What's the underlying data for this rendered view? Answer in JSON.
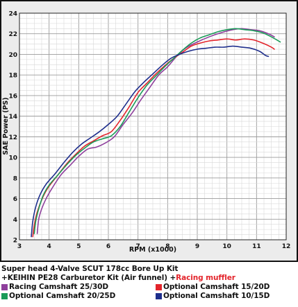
{
  "chart_data": {
    "type": "line",
    "xlabel": "RPM (x1000)",
    "ylabel": "SAE Power (PS)",
    "xlim": [
      3,
      12
    ],
    "ylim": [
      2,
      24
    ],
    "x_ticks": [
      3,
      4,
      5,
      6,
      7,
      8,
      9,
      10,
      11,
      12
    ],
    "y_ticks": [
      2,
      4,
      6,
      8,
      10,
      12,
      14,
      16,
      18,
      20,
      22,
      24
    ],
    "grid": true,
    "series": [
      {
        "name": "Racing Camshaft 25/30D",
        "color": "#8e3f9c",
        "x": [
          3.6,
          3.65,
          3.75,
          3.9,
          4.1,
          4.4,
          4.7,
          5.0,
          5.3,
          5.6,
          5.9,
          6.2,
          6.5,
          6.8,
          7.1,
          7.4,
          7.7,
          8.0,
          8.3,
          8.6,
          9.0,
          9.4,
          9.8,
          10.2,
          10.5,
          10.8,
          11.1,
          11.4,
          11.6
        ],
        "y": [
          2.6,
          4.0,
          5.0,
          6.0,
          7.0,
          8.3,
          9.2,
          10.1,
          10.8,
          11.0,
          11.4,
          12.0,
          13.2,
          14.3,
          15.6,
          16.8,
          18.0,
          18.8,
          19.8,
          20.6,
          21.2,
          21.7,
          22.1,
          22.4,
          22.5,
          22.4,
          22.3,
          22.0,
          21.7
        ]
      },
      {
        "name": "Optional Camshaft 15/20D",
        "color": "#e3242b",
        "x": [
          3.45,
          3.5,
          3.6,
          3.8,
          4.0,
          4.3,
          4.6,
          4.9,
          5.2,
          5.5,
          5.8,
          6.1,
          6.4,
          6.7,
          7.0,
          7.3,
          7.6,
          7.9,
          8.2,
          8.5,
          8.8,
          9.1,
          9.4,
          9.7,
          10.0,
          10.3,
          10.6,
          10.9,
          11.2,
          11.5,
          11.6
        ],
        "y": [
          2.3,
          3.4,
          4.7,
          6.2,
          7.2,
          8.3,
          9.4,
          10.3,
          11.1,
          11.6,
          12.1,
          12.5,
          13.6,
          14.9,
          16.3,
          17.2,
          18.1,
          18.9,
          19.6,
          20.2,
          20.8,
          21.1,
          21.3,
          21.4,
          21.5,
          21.4,
          21.5,
          21.4,
          21.1,
          20.7,
          20.5
        ]
      },
      {
        "name": "Optional Camshaft 20/25D",
        "color": "#1a9b58",
        "x": [
          3.5,
          3.55,
          3.65,
          3.8,
          4.0,
          4.3,
          4.6,
          4.9,
          5.2,
          5.5,
          5.8,
          6.1,
          6.4,
          6.7,
          7.0,
          7.3,
          7.6,
          7.9,
          8.2,
          8.5,
          8.8,
          9.1,
          9.4,
          9.7,
          10.0,
          10.3,
          10.6,
          10.9,
          11.2,
          11.5,
          11.8
        ],
        "y": [
          2.6,
          3.8,
          5.0,
          6.3,
          7.3,
          8.3,
          9.3,
          10.2,
          10.9,
          11.5,
          11.8,
          12.1,
          13.0,
          14.4,
          15.8,
          17.0,
          17.9,
          18.8,
          19.6,
          20.4,
          21.1,
          21.6,
          21.9,
          22.2,
          22.4,
          22.5,
          22.4,
          22.3,
          22.1,
          21.7,
          21.2
        ]
      },
      {
        "name": "Optional Camshaft 10/15D",
        "color": "#1e2e8c",
        "x": [
          3.4,
          3.45,
          3.55,
          3.7,
          3.9,
          4.2,
          4.5,
          4.8,
          5.1,
          5.4,
          5.7,
          6.0,
          6.3,
          6.6,
          6.9,
          7.2,
          7.5,
          7.8,
          8.1,
          8.4,
          8.7,
          9.0,
          9.3,
          9.6,
          9.9,
          10.2,
          10.5,
          10.8,
          11.1,
          11.3,
          11.4
        ],
        "y": [
          2.3,
          3.8,
          5.2,
          6.4,
          7.4,
          8.4,
          9.5,
          10.5,
          11.3,
          11.9,
          12.5,
          13.2,
          14.0,
          15.2,
          16.4,
          17.3,
          18.1,
          18.9,
          19.6,
          20.0,
          20.3,
          20.5,
          20.6,
          20.7,
          20.7,
          20.8,
          20.7,
          20.6,
          20.3,
          19.9,
          19.8
        ]
      }
    ]
  },
  "caption": {
    "line1": "Super head 4-Valve SCUT 178cc Bore Up Kit",
    "line2_prefix": "+KEIHIN PE28 Carburetor Kit (Air funnel) +",
    "line2_accent": "Racing muffler"
  }
}
